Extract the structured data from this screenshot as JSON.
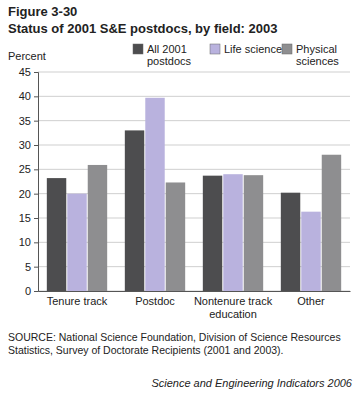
{
  "chart_data": {
    "type": "bar",
    "figure_label": "Figure 3-30",
    "title": "Status of 2001 S&E postdocs, by field: 2003",
    "y_label": "Percent",
    "categories": [
      "Tenure track",
      "Postdoc",
      "Nontenure track education",
      "Other"
    ],
    "series": [
      {
        "name": "All 2001 postdocs",
        "color": "#4d4d4f",
        "values": [
          23.2,
          33,
          23.7,
          20.2
        ]
      },
      {
        "name": "Life sciences",
        "color": "#b9b2de",
        "values": [
          20,
          39.7,
          24,
          16.3
        ]
      },
      {
        "name": "Physical sciences",
        "color": "#8e8e90",
        "values": [
          25.9,
          22.3,
          23.8,
          28
        ]
      }
    ],
    "ylim": [
      0,
      45
    ],
    "yticks": [
      0,
      5,
      10,
      15,
      20,
      25,
      30,
      35,
      40,
      45
    ],
    "grid": true,
    "legend": "top",
    "source": "SOURCE: National Science Foundation, Division of Science Resources Statistics, Survey of Doctorate Recipients (2001 and 2003).",
    "credit": "Science and Engineering Indicators 2006"
  }
}
